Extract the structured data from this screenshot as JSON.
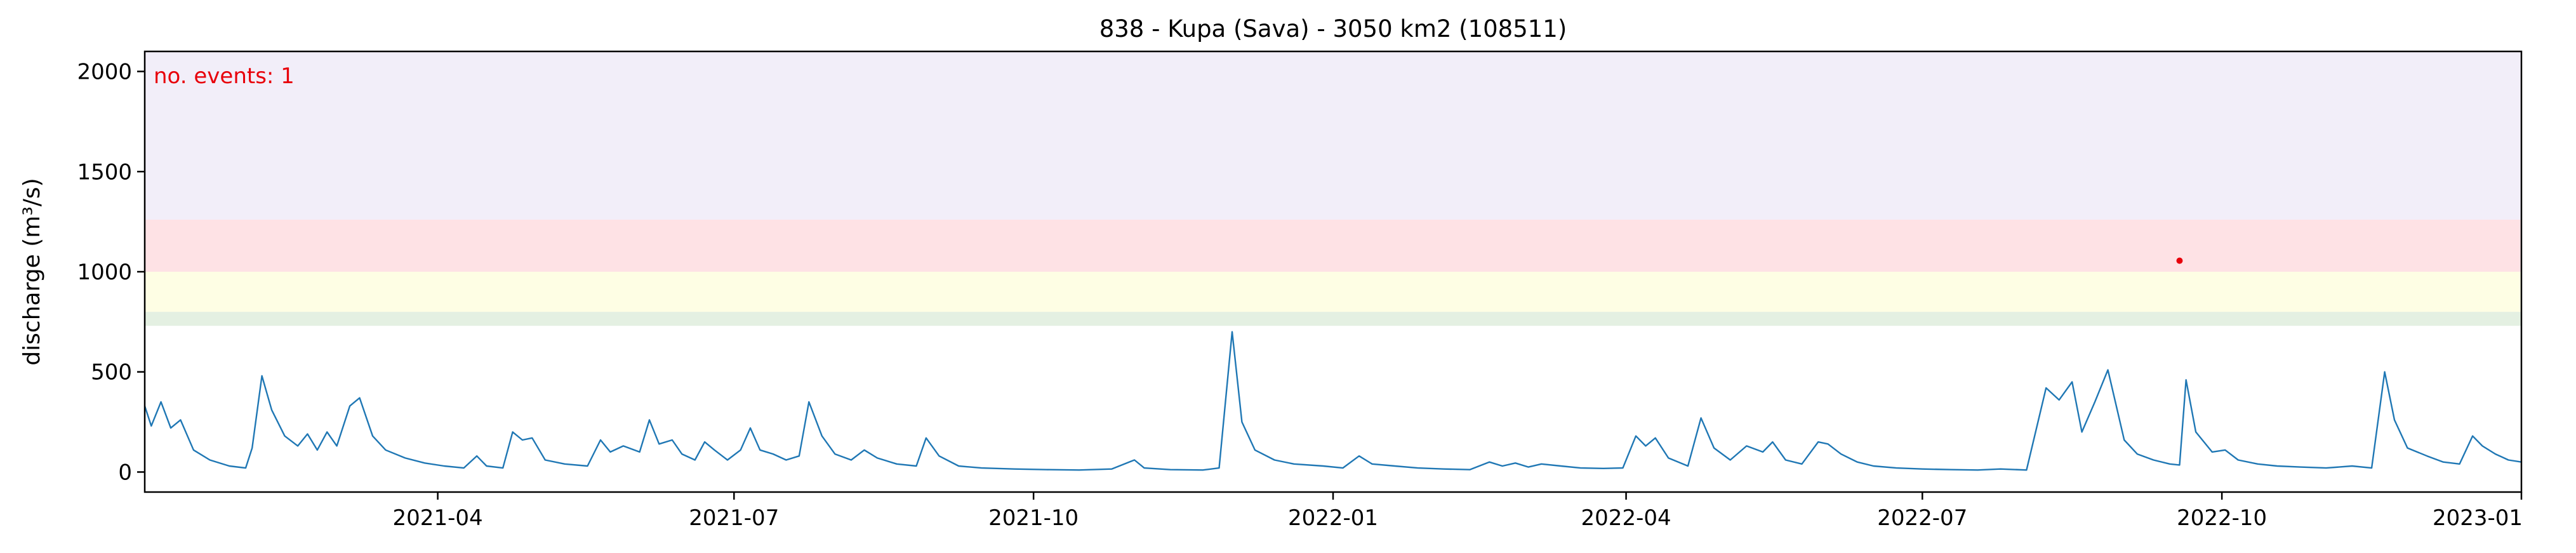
{
  "chart_data": {
    "type": "line",
    "title": "838 - Kupa (Sava) - 3050 km2 (108511)",
    "xlabel": "",
    "ylabel": "discharge (m³/s)",
    "x_range": [
      "2021-01-01",
      "2023-01-01"
    ],
    "ylim": [
      -100,
      2100
    ],
    "y_ticks": [
      0,
      500,
      1000,
      1500,
      2000
    ],
    "x_ticks": [
      {
        "date": "2021-04-01",
        "label": "2021-04"
      },
      {
        "date": "2021-07-01",
        "label": "2021-07"
      },
      {
        "date": "2021-10-01",
        "label": "2021-10"
      },
      {
        "date": "2022-01-01",
        "label": "2022-01"
      },
      {
        "date": "2022-04-01",
        "label": "2022-04"
      },
      {
        "date": "2022-07-01",
        "label": "2022-07"
      },
      {
        "date": "2022-10-01",
        "label": "2022-10"
      },
      {
        "date": "2023-01-01",
        "label": "2023-01"
      }
    ],
    "grid": false,
    "bands": [
      {
        "ymin": 730,
        "ymax": 800,
        "color": "#e4f0e2"
      },
      {
        "ymin": 800,
        "ymax": 1000,
        "color": "#fefee4"
      },
      {
        "ymin": 1000,
        "ymax": 1260,
        "color": "#fee2e5"
      },
      {
        "ymin": 1260,
        "ymax": 2100,
        "color": "#f2eef9"
      }
    ],
    "annotation": {
      "text": "no. events: 1",
      "color": "#e8000b"
    },
    "events": [
      {
        "date": "2022-09-18",
        "value": 1055,
        "color": "#e8000b"
      }
    ],
    "series": [
      {
        "color": "#1f77b4",
        "points": [
          [
            "2021-01-01",
            330
          ],
          [
            "2021-01-03",
            230
          ],
          [
            "2021-01-06",
            350
          ],
          [
            "2021-01-09",
            220
          ],
          [
            "2021-01-12",
            260
          ],
          [
            "2021-01-16",
            110
          ],
          [
            "2021-01-21",
            60
          ],
          [
            "2021-01-27",
            30
          ],
          [
            "2021-02-01",
            20
          ],
          [
            "2021-02-03",
            120
          ],
          [
            "2021-02-06",
            480
          ],
          [
            "2021-02-09",
            310
          ],
          [
            "2021-02-13",
            180
          ],
          [
            "2021-02-17",
            130
          ],
          [
            "2021-02-20",
            190
          ],
          [
            "2021-02-23",
            110
          ],
          [
            "2021-02-26",
            200
          ],
          [
            "2021-03-01",
            130
          ],
          [
            "2021-03-05",
            330
          ],
          [
            "2021-03-08",
            370
          ],
          [
            "2021-03-12",
            180
          ],
          [
            "2021-03-16",
            110
          ],
          [
            "2021-03-22",
            70
          ],
          [
            "2021-03-28",
            45
          ],
          [
            "2021-04-03",
            30
          ],
          [
            "2021-04-09",
            20
          ],
          [
            "2021-04-13",
            80
          ],
          [
            "2021-04-16",
            30
          ],
          [
            "2021-04-21",
            20
          ],
          [
            "2021-04-24",
            200
          ],
          [
            "2021-04-27",
            160
          ],
          [
            "2021-04-30",
            170
          ],
          [
            "2021-05-04",
            60
          ],
          [
            "2021-05-10",
            40
          ],
          [
            "2021-05-17",
            30
          ],
          [
            "2021-05-21",
            160
          ],
          [
            "2021-05-24",
            100
          ],
          [
            "2021-05-28",
            130
          ],
          [
            "2021-06-02",
            100
          ],
          [
            "2021-06-05",
            260
          ],
          [
            "2021-06-08",
            140
          ],
          [
            "2021-06-12",
            160
          ],
          [
            "2021-06-15",
            90
          ],
          [
            "2021-06-19",
            60
          ],
          [
            "2021-06-22",
            150
          ],
          [
            "2021-06-25",
            110
          ],
          [
            "2021-06-29",
            60
          ],
          [
            "2021-07-03",
            110
          ],
          [
            "2021-07-06",
            220
          ],
          [
            "2021-07-09",
            110
          ],
          [
            "2021-07-13",
            90
          ],
          [
            "2021-07-17",
            60
          ],
          [
            "2021-07-21",
            80
          ],
          [
            "2021-07-24",
            350
          ],
          [
            "2021-07-28",
            180
          ],
          [
            "2021-08-01",
            90
          ],
          [
            "2021-08-06",
            60
          ],
          [
            "2021-08-10",
            110
          ],
          [
            "2021-08-14",
            70
          ],
          [
            "2021-08-20",
            40
          ],
          [
            "2021-08-26",
            30
          ],
          [
            "2021-08-29",
            170
          ],
          [
            "2021-09-02",
            80
          ],
          [
            "2021-09-08",
            30
          ],
          [
            "2021-09-15",
            20
          ],
          [
            "2021-09-25",
            15
          ],
          [
            "2021-10-05",
            12
          ],
          [
            "2021-10-15",
            10
          ],
          [
            "2021-10-25",
            15
          ],
          [
            "2021-11-01",
            60
          ],
          [
            "2021-11-04",
            20
          ],
          [
            "2021-11-12",
            12
          ],
          [
            "2021-11-22",
            10
          ],
          [
            "2021-11-27",
            20
          ],
          [
            "2021-12-01",
            700
          ],
          [
            "2021-12-04",
            250
          ],
          [
            "2021-12-08",
            110
          ],
          [
            "2021-12-14",
            60
          ],
          [
            "2021-12-20",
            40
          ],
          [
            "2021-12-29",
            30
          ],
          [
            "2022-01-04",
            20
          ],
          [
            "2022-01-09",
            80
          ],
          [
            "2022-01-13",
            40
          ],
          [
            "2022-01-20",
            30
          ],
          [
            "2022-01-27",
            20
          ],
          [
            "2022-02-04",
            15
          ],
          [
            "2022-02-12",
            12
          ],
          [
            "2022-02-18",
            50
          ],
          [
            "2022-02-22",
            30
          ],
          [
            "2022-02-26",
            45
          ],
          [
            "2022-03-02",
            25
          ],
          [
            "2022-03-06",
            40
          ],
          [
            "2022-03-12",
            30
          ],
          [
            "2022-03-18",
            20
          ],
          [
            "2022-03-25",
            18
          ],
          [
            "2022-03-31",
            20
          ],
          [
            "2022-04-04",
            180
          ],
          [
            "2022-04-07",
            130
          ],
          [
            "2022-04-10",
            170
          ],
          [
            "2022-04-14",
            70
          ],
          [
            "2022-04-20",
            30
          ],
          [
            "2022-04-24",
            270
          ],
          [
            "2022-04-28",
            120
          ],
          [
            "2022-05-03",
            60
          ],
          [
            "2022-05-08",
            130
          ],
          [
            "2022-05-13",
            100
          ],
          [
            "2022-05-16",
            150
          ],
          [
            "2022-05-20",
            60
          ],
          [
            "2022-05-25",
            40
          ],
          [
            "2022-05-30",
            150
          ],
          [
            "2022-06-02",
            140
          ],
          [
            "2022-06-06",
            90
          ],
          [
            "2022-06-11",
            50
          ],
          [
            "2022-06-16",
            30
          ],
          [
            "2022-06-23",
            20
          ],
          [
            "2022-07-01",
            15
          ],
          [
            "2022-07-10",
            12
          ],
          [
            "2022-07-18",
            10
          ],
          [
            "2022-07-25",
            15
          ],
          [
            "2022-08-02",
            10
          ],
          [
            "2022-08-08",
            420
          ],
          [
            "2022-08-12",
            360
          ],
          [
            "2022-08-16",
            450
          ],
          [
            "2022-08-19",
            200
          ],
          [
            "2022-08-23",
            350
          ],
          [
            "2022-08-27",
            510
          ],
          [
            "2022-09-01",
            160
          ],
          [
            "2022-09-05",
            90
          ],
          [
            "2022-09-10",
            60
          ],
          [
            "2022-09-15",
            40
          ],
          [
            "2022-09-18",
            35
          ],
          [
            "2022-09-20",
            460
          ],
          [
            "2022-09-23",
            200
          ],
          [
            "2022-09-28",
            100
          ],
          [
            "2022-10-02",
            110
          ],
          [
            "2022-10-06",
            60
          ],
          [
            "2022-10-12",
            40
          ],
          [
            "2022-10-18",
            30
          ],
          [
            "2022-10-25",
            25
          ],
          [
            "2022-11-02",
            20
          ],
          [
            "2022-11-10",
            30
          ],
          [
            "2022-11-16",
            20
          ],
          [
            "2022-11-20",
            500
          ],
          [
            "2022-11-23",
            260
          ],
          [
            "2022-11-27",
            120
          ],
          [
            "2022-12-03",
            80
          ],
          [
            "2022-12-08",
            50
          ],
          [
            "2022-12-13",
            40
          ],
          [
            "2022-12-17",
            180
          ],
          [
            "2022-12-20",
            130
          ],
          [
            "2022-12-24",
            90
          ],
          [
            "2022-12-28",
            60
          ],
          [
            "2023-01-01",
            50
          ]
        ]
      }
    ]
  }
}
